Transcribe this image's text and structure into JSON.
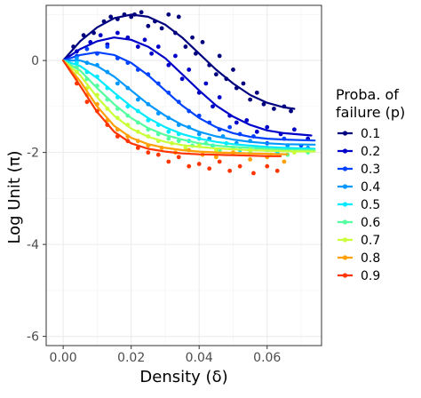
{
  "chart_data": {
    "type": "scatter",
    "xlabel": "Density (δ)",
    "ylabel": "Log Unit (π)",
    "xlim": [
      -0.005,
      0.076
    ],
    "ylim": [
      -6.2,
      1.2
    ],
    "x_ticks": [
      0.0,
      0.02,
      0.04,
      0.06
    ],
    "x_tick_labels": [
      "0.00",
      "0.02",
      "0.04",
      "0.06"
    ],
    "y_ticks": [
      0,
      -2,
      -4,
      -6
    ],
    "y_tick_labels": [
      "0",
      "-2",
      "-4",
      "-6"
    ],
    "grid": true,
    "legend": {
      "title_lines": [
        "Proba. of",
        "failure (p)"
      ],
      "position": "right"
    },
    "series": [
      {
        "name": "0.1",
        "color": "#00007f",
        "x_max": 0.068,
        "curve_x": [
          0.0,
          0.005,
          0.01,
          0.015,
          0.02,
          0.025,
          0.03,
          0.035,
          0.04,
          0.045,
          0.05,
          0.055,
          0.06,
          0.065,
          0.068
        ],
        "curve_y": [
          0.0,
          0.42,
          0.72,
          0.92,
          1.0,
          0.95,
          0.78,
          0.5,
          0.15,
          -0.2,
          -0.5,
          -0.75,
          -0.92,
          -1.02,
          -1.05
        ],
        "points": [
          [
            0.003,
            0.3
          ],
          [
            0.006,
            0.55
          ],
          [
            0.009,
            0.6
          ],
          [
            0.012,
            0.85
          ],
          [
            0.014,
            0.95
          ],
          [
            0.016,
            0.9
          ],
          [
            0.018,
            1.0
          ],
          [
            0.02,
            0.95
          ],
          [
            0.021,
            1.0
          ],
          [
            0.023,
            1.05
          ],
          [
            0.025,
            0.75
          ],
          [
            0.027,
            0.85
          ],
          [
            0.029,
            0.7
          ],
          [
            0.031,
            1.0
          ],
          [
            0.033,
            0.6
          ],
          [
            0.034,
            0.95
          ],
          [
            0.036,
            0.3
          ],
          [
            0.038,
            0.5
          ],
          [
            0.039,
            0.15
          ],
          [
            0.041,
            0.4
          ],
          [
            0.043,
            -0.1
          ],
          [
            0.045,
            -0.3
          ],
          [
            0.046,
            0.1
          ],
          [
            0.048,
            -0.4
          ],
          [
            0.05,
            -0.2
          ],
          [
            0.051,
            -0.6
          ],
          [
            0.053,
            -0.5
          ],
          [
            0.055,
            -0.85
          ],
          [
            0.057,
            -0.7
          ],
          [
            0.059,
            -0.95
          ],
          [
            0.062,
            -1.05
          ],
          [
            0.065,
            -1.0
          ],
          [
            0.067,
            -1.1
          ]
        ]
      },
      {
        "name": "0.2",
        "color": "#0000c8",
        "x_max": 0.073,
        "curve_x": [
          0.0,
          0.005,
          0.01,
          0.015,
          0.02,
          0.025,
          0.03,
          0.035,
          0.04,
          0.045,
          0.05,
          0.055,
          0.06,
          0.065,
          0.073
        ],
        "curve_y": [
          0.0,
          0.25,
          0.42,
          0.5,
          0.45,
          0.3,
          0.05,
          -0.3,
          -0.65,
          -0.98,
          -1.22,
          -1.4,
          -1.52,
          -1.58,
          -1.63
        ],
        "points": [
          [
            0.004,
            0.2
          ],
          [
            0.008,
            0.4
          ],
          [
            0.011,
            0.55
          ],
          [
            0.013,
            0.35
          ],
          [
            0.016,
            0.6
          ],
          [
            0.019,
            0.5
          ],
          [
            0.022,
            0.3
          ],
          [
            0.024,
            0.45
          ],
          [
            0.026,
            0.15
          ],
          [
            0.028,
            0.3
          ],
          [
            0.031,
            -0.1
          ],
          [
            0.033,
            0.1
          ],
          [
            0.035,
            -0.4
          ],
          [
            0.037,
            -0.2
          ],
          [
            0.04,
            -0.7
          ],
          [
            0.042,
            -0.5
          ],
          [
            0.044,
            -1.0
          ],
          [
            0.046,
            -0.8
          ],
          [
            0.049,
            -1.2
          ],
          [
            0.051,
            -1.35
          ],
          [
            0.054,
            -1.3
          ],
          [
            0.057,
            -1.55
          ],
          [
            0.06,
            -1.45
          ],
          [
            0.064,
            -1.6
          ],
          [
            0.068,
            -1.5
          ],
          [
            0.072,
            -1.7
          ]
        ]
      },
      {
        "name": "0.3",
        "color": "#0042ff",
        "x_max": 0.074,
        "curve_x": [
          0.0,
          0.005,
          0.01,
          0.015,
          0.02,
          0.025,
          0.03,
          0.035,
          0.04,
          0.045,
          0.05,
          0.055,
          0.06,
          0.065,
          0.074
        ],
        "curve_y": [
          0.0,
          0.12,
          0.18,
          0.12,
          -0.05,
          -0.32,
          -0.65,
          -0.98,
          -1.25,
          -1.45,
          -1.58,
          -1.66,
          -1.7,
          -1.72,
          -1.74
        ],
        "points": [
          [
            0.004,
            0.1
          ],
          [
            0.007,
            0.25
          ],
          [
            0.01,
            0.15
          ],
          [
            0.013,
            0.3
          ],
          [
            0.016,
            0.05
          ],
          [
            0.019,
            -0.05
          ],
          [
            0.022,
            -0.2
          ],
          [
            0.025,
            -0.3
          ],
          [
            0.028,
            -0.5
          ],
          [
            0.031,
            -0.7
          ],
          [
            0.034,
            -0.9
          ],
          [
            0.037,
            -1.1
          ],
          [
            0.04,
            -1.2
          ],
          [
            0.043,
            -1.35
          ],
          [
            0.046,
            -1.5
          ],
          [
            0.049,
            -1.45
          ],
          [
            0.052,
            -1.6
          ],
          [
            0.056,
            -1.65
          ],
          [
            0.06,
            -1.8
          ],
          [
            0.065,
            -1.7
          ],
          [
            0.07,
            -1.85
          ]
        ]
      },
      {
        "name": "0.4",
        "color": "#0097ff",
        "x_max": 0.074,
        "curve_x": [
          0.0,
          0.005,
          0.01,
          0.015,
          0.02,
          0.025,
          0.03,
          0.035,
          0.04,
          0.045,
          0.05,
          0.055,
          0.06,
          0.065,
          0.074
        ],
        "curve_y": [
          0.0,
          0.0,
          -0.12,
          -0.35,
          -0.65,
          -0.95,
          -1.2,
          -1.4,
          -1.55,
          -1.65,
          -1.72,
          -1.77,
          -1.8,
          -1.82,
          -1.83
        ],
        "points": [
          [
            0.004,
            0.05
          ],
          [
            0.007,
            -0.05
          ],
          [
            0.01,
            -0.1
          ],
          [
            0.013,
            -0.25
          ],
          [
            0.016,
            -0.5
          ],
          [
            0.019,
            -0.6
          ],
          [
            0.022,
            -0.85
          ],
          [
            0.025,
            -0.95
          ],
          [
            0.028,
            -1.15
          ],
          [
            0.031,
            -1.25
          ],
          [
            0.034,
            -1.4
          ],
          [
            0.037,
            -1.45
          ],
          [
            0.04,
            -1.6
          ],
          [
            0.043,
            -1.7
          ],
          [
            0.047,
            -1.65
          ],
          [
            0.051,
            -1.8
          ],
          [
            0.055,
            -1.75
          ],
          [
            0.06,
            -1.9
          ],
          [
            0.066,
            -1.85
          ],
          [
            0.072,
            -1.9
          ]
        ]
      },
      {
        "name": "0.5",
        "color": "#00eaff",
        "x_max": 0.074,
        "curve_x": [
          0.0,
          0.005,
          0.01,
          0.015,
          0.02,
          0.025,
          0.03,
          0.035,
          0.04,
          0.045,
          0.05,
          0.055,
          0.06,
          0.065,
          0.074
        ],
        "curve_y": [
          0.0,
          -0.12,
          -0.38,
          -0.7,
          -1.0,
          -1.25,
          -1.45,
          -1.6,
          -1.7,
          -1.77,
          -1.82,
          -1.85,
          -1.88,
          -1.9,
          -1.92
        ],
        "points": [
          [
            0.004,
            -0.05
          ],
          [
            0.007,
            -0.25
          ],
          [
            0.01,
            -0.35
          ],
          [
            0.013,
            -0.6
          ],
          [
            0.016,
            -0.8
          ],
          [
            0.019,
            -1.0
          ],
          [
            0.022,
            -1.1
          ],
          [
            0.025,
            -1.3
          ],
          [
            0.028,
            -1.4
          ],
          [
            0.031,
            -1.55
          ],
          [
            0.034,
            -1.6
          ],
          [
            0.037,
            -1.75
          ],
          [
            0.04,
            -1.7
          ],
          [
            0.044,
            -1.85
          ],
          [
            0.048,
            -1.8
          ],
          [
            0.052,
            -1.95
          ],
          [
            0.057,
            -1.9
          ],
          [
            0.063,
            -2.0
          ],
          [
            0.07,
            -1.95
          ]
        ]
      },
      {
        "name": "0.6",
        "color": "#54ff9f",
        "x_max": 0.074,
        "curve_x": [
          0.0,
          0.005,
          0.01,
          0.015,
          0.02,
          0.025,
          0.03,
          0.035,
          0.04,
          0.045,
          0.05,
          0.055,
          0.06,
          0.065,
          0.074
        ],
        "curve_y": [
          0.0,
          -0.22,
          -0.6,
          -0.95,
          -1.25,
          -1.47,
          -1.62,
          -1.72,
          -1.8,
          -1.85,
          -1.88,
          -1.9,
          -1.92,
          -1.94,
          -1.95
        ],
        "points": [
          [
            0.004,
            -0.15
          ],
          [
            0.007,
            -0.4
          ],
          [
            0.01,
            -0.55
          ],
          [
            0.013,
            -0.85
          ],
          [
            0.016,
            -1.05
          ],
          [
            0.019,
            -1.2
          ],
          [
            0.022,
            -1.35
          ],
          [
            0.025,
            -1.5
          ],
          [
            0.028,
            -1.6
          ],
          [
            0.031,
            -1.7
          ],
          [
            0.034,
            -1.75
          ],
          [
            0.038,
            -1.85
          ],
          [
            0.042,
            -1.8
          ],
          [
            0.046,
            -1.95
          ],
          [
            0.05,
            -1.9
          ],
          [
            0.055,
            -2.0
          ],
          [
            0.06,
            -1.95
          ],
          [
            0.066,
            -2.05
          ],
          [
            0.072,
            -2.0
          ]
        ]
      },
      {
        "name": "0.7",
        "color": "#c8ff38",
        "x_max": 0.074,
        "curve_x": [
          0.0,
          0.005,
          0.01,
          0.015,
          0.02,
          0.025,
          0.03,
          0.035,
          0.04,
          0.045,
          0.05,
          0.055,
          0.06,
          0.065,
          0.074
        ],
        "curve_y": [
          0.0,
          -0.32,
          -0.8,
          -1.2,
          -1.48,
          -1.66,
          -1.77,
          -1.84,
          -1.88,
          -1.91,
          -1.93,
          -1.95,
          -1.96,
          -1.97,
          -1.98
        ],
        "points": [
          [
            0.004,
            -0.25
          ],
          [
            0.007,
            -0.6
          ],
          [
            0.01,
            -0.75
          ],
          [
            0.013,
            -1.05
          ],
          [
            0.016,
            -1.25
          ],
          [
            0.019,
            -1.4
          ],
          [
            0.022,
            -1.55
          ],
          [
            0.025,
            -1.65
          ],
          [
            0.028,
            -1.75
          ],
          [
            0.032,
            -1.8
          ],
          [
            0.036,
            -1.9
          ],
          [
            0.04,
            -1.85
          ],
          [
            0.045,
            -1.95
          ],
          [
            0.05,
            -2.0
          ],
          [
            0.055,
            -1.95
          ],
          [
            0.061,
            -2.05
          ],
          [
            0.068,
            -2.0
          ]
        ]
      },
      {
        "name": "0.8",
        "color": "#ff9f00",
        "x_max": 0.066,
        "curve_x": [
          0.0,
          0.005,
          0.01,
          0.015,
          0.02,
          0.025,
          0.03,
          0.035,
          0.04,
          0.045,
          0.05,
          0.055,
          0.06,
          0.066
        ],
        "curve_y": [
          0.0,
          -0.45,
          -1.0,
          -1.42,
          -1.68,
          -1.82,
          -1.9,
          -1.95,
          -1.98,
          -2.0,
          -2.01,
          -2.02,
          -2.03,
          -2.04
        ],
        "points": [
          [
            0.004,
            -0.4
          ],
          [
            0.007,
            -0.75
          ],
          [
            0.01,
            -0.95
          ],
          [
            0.013,
            -1.3
          ],
          [
            0.016,
            -1.5
          ],
          [
            0.019,
            -1.65
          ],
          [
            0.022,
            -1.75
          ],
          [
            0.025,
            -1.85
          ],
          [
            0.029,
            -1.9
          ],
          [
            0.033,
            -2.0
          ],
          [
            0.037,
            -1.95
          ],
          [
            0.041,
            -2.05
          ],
          [
            0.045,
            -2.1
          ],
          [
            0.05,
            -2.0
          ],
          [
            0.055,
            -2.15
          ],
          [
            0.06,
            -2.1
          ],
          [
            0.065,
            -2.2
          ]
        ]
      },
      {
        "name": "0.9",
        "color": "#ff3500",
        "x_max": 0.064,
        "curve_x": [
          0.0,
          0.005,
          0.01,
          0.015,
          0.02,
          0.025,
          0.03,
          0.035,
          0.04,
          0.045,
          0.05,
          0.055,
          0.06,
          0.064
        ],
        "curve_y": [
          0.0,
          -0.55,
          -1.12,
          -1.55,
          -1.8,
          -1.92,
          -1.98,
          -2.02,
          -2.04,
          -2.05,
          -2.06,
          -2.07,
          -2.08,
          -2.08
        ],
        "points": [
          [
            0.004,
            -0.5
          ],
          [
            0.007,
            -0.9
          ],
          [
            0.01,
            -1.1
          ],
          [
            0.013,
            -1.4
          ],
          [
            0.016,
            -1.65
          ],
          [
            0.019,
            -1.75
          ],
          [
            0.022,
            -1.9
          ],
          [
            0.025,
            -2.0
          ],
          [
            0.028,
            -2.05
          ],
          [
            0.031,
            -2.2
          ],
          [
            0.034,
            -2.1
          ],
          [
            0.037,
            -2.3
          ],
          [
            0.04,
            -2.25
          ],
          [
            0.043,
            -2.35
          ],
          [
            0.046,
            -2.2
          ],
          [
            0.049,
            -2.4
          ],
          [
            0.052,
            -2.3
          ],
          [
            0.056,
            -2.45
          ],
          [
            0.06,
            -2.3
          ],
          [
            0.063,
            -2.4
          ]
        ]
      }
    ]
  }
}
